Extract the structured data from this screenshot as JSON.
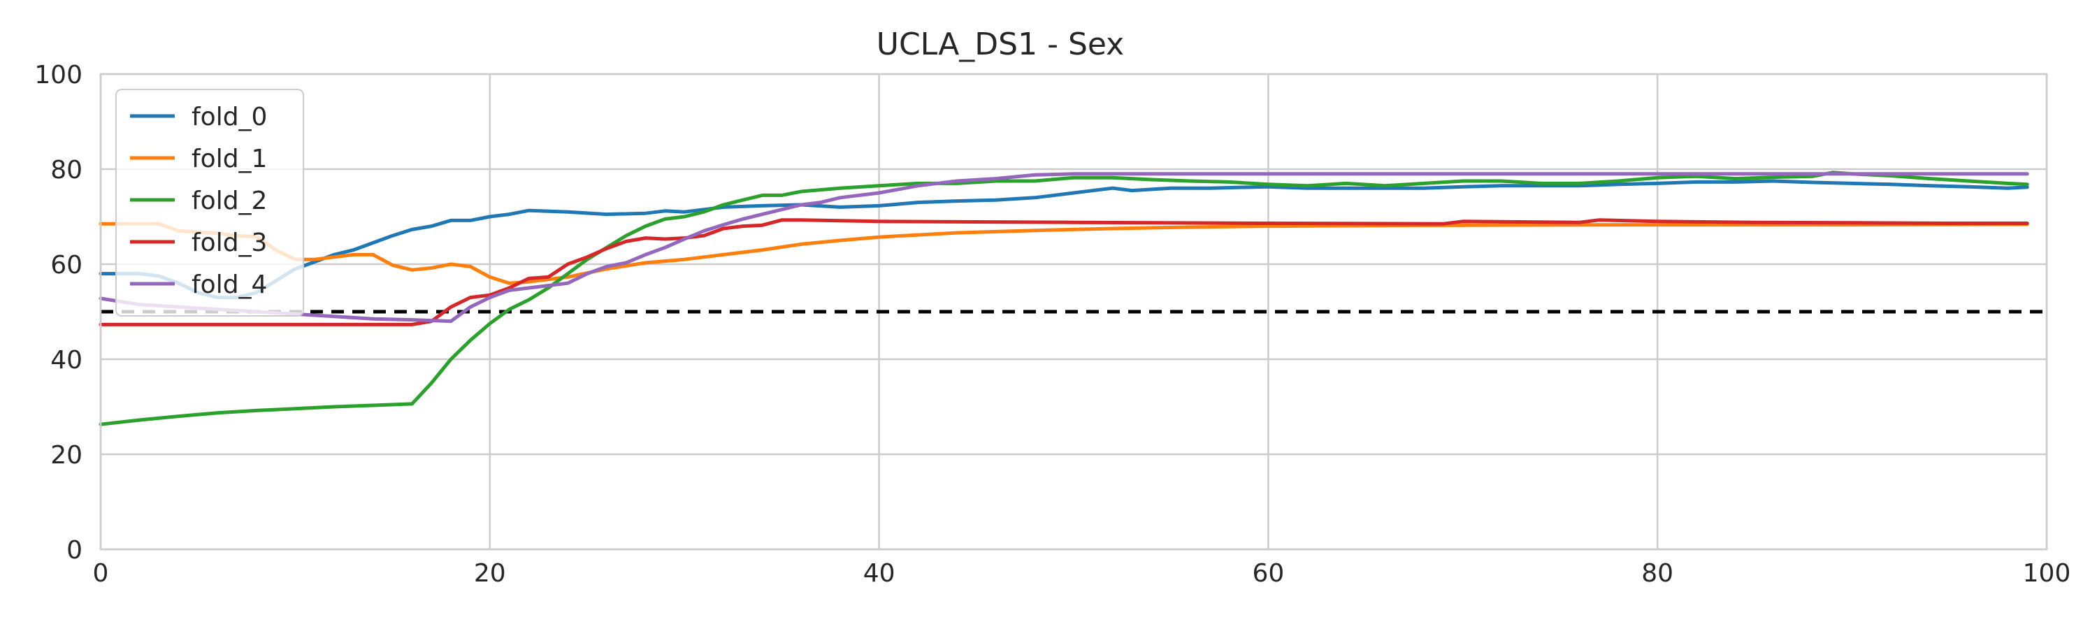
{
  "chart_data": {
    "type": "line",
    "title": "UCLA_DS1 - Sex",
    "xlabel": "",
    "ylabel": "",
    "xlim": [
      0,
      100
    ],
    "ylim": [
      0,
      100
    ],
    "x_ticks": [
      "0",
      "20",
      "40",
      "60",
      "80",
      "100"
    ],
    "y_ticks": [
      "0",
      "20",
      "40",
      "60",
      "80",
      "100"
    ],
    "grid": true,
    "legend_position": "upper-left",
    "reference_line": {
      "y": 50,
      "style": "dashed",
      "color": "#000000"
    },
    "series": [
      {
        "name": "fold_0",
        "color": "#1f77b4",
        "points": [
          [
            0,
            58
          ],
          [
            2,
            58
          ],
          [
            3,
            57.5
          ],
          [
            4,
            56
          ],
          [
            5,
            54
          ],
          [
            6,
            53
          ],
          [
            7,
            53
          ],
          [
            8,
            54
          ],
          [
            9,
            56.5
          ],
          [
            10,
            59
          ],
          [
            11,
            60.5
          ],
          [
            12,
            62
          ],
          [
            13,
            63
          ],
          [
            14,
            64.5
          ],
          [
            15,
            66
          ],
          [
            16,
            67.3
          ],
          [
            17,
            68
          ],
          [
            18,
            69.2
          ],
          [
            19,
            69.2
          ],
          [
            20,
            70
          ],
          [
            21,
            70.5
          ],
          [
            22,
            71.3
          ],
          [
            24,
            71
          ],
          [
            26,
            70.5
          ],
          [
            28,
            70.7
          ],
          [
            29,
            71.2
          ],
          [
            30,
            71
          ],
          [
            32,
            72
          ],
          [
            34,
            72.3
          ],
          [
            36,
            72.5
          ],
          [
            38,
            72
          ],
          [
            40,
            72.3
          ],
          [
            42,
            73
          ],
          [
            44,
            73.3
          ],
          [
            46,
            73.5
          ],
          [
            48,
            74
          ],
          [
            50,
            75
          ],
          [
            52,
            76
          ],
          [
            53,
            75.5
          ],
          [
            55,
            76
          ],
          [
            57,
            76
          ],
          [
            60,
            76.3
          ],
          [
            62,
            76
          ],
          [
            64,
            76
          ],
          [
            66,
            76
          ],
          [
            68,
            76
          ],
          [
            70,
            76.3
          ],
          [
            72,
            76.5
          ],
          [
            74,
            76.5
          ],
          [
            76,
            76.5
          ],
          [
            78,
            76.8
          ],
          [
            80,
            77
          ],
          [
            82,
            77.3
          ],
          [
            84,
            77.3
          ],
          [
            86,
            77.5
          ],
          [
            88,
            77.2
          ],
          [
            90,
            77
          ],
          [
            92,
            76.8
          ],
          [
            94,
            76.5
          ],
          [
            96,
            76.3
          ],
          [
            98,
            76
          ],
          [
            99,
            76.2
          ]
        ]
      },
      {
        "name": "fold_1",
        "color": "#ff7f0e",
        "points": [
          [
            0,
            68.5
          ],
          [
            3,
            68.5
          ],
          [
            4,
            67
          ],
          [
            6,
            66.5
          ],
          [
            7,
            66
          ],
          [
            8,
            65.8
          ],
          [
            9,
            63
          ],
          [
            10,
            61
          ],
          [
            11,
            61
          ],
          [
            13,
            62
          ],
          [
            14,
            62
          ],
          [
            15,
            59.8
          ],
          [
            16,
            58.8
          ],
          [
            17,
            59.2
          ],
          [
            18,
            60
          ],
          [
            19,
            59.5
          ],
          [
            20,
            57.3
          ],
          [
            21,
            56
          ],
          [
            22,
            56.3
          ],
          [
            24,
            57.3
          ],
          [
            26,
            59
          ],
          [
            28,
            60.3
          ],
          [
            30,
            61
          ],
          [
            32,
            62
          ],
          [
            34,
            63
          ],
          [
            36,
            64.2
          ],
          [
            38,
            65
          ],
          [
            40,
            65.7
          ],
          [
            44,
            66.6
          ],
          [
            48,
            67.1
          ],
          [
            52,
            67.5
          ],
          [
            56,
            67.8
          ],
          [
            60,
            68
          ],
          [
            65,
            68.1
          ],
          [
            70,
            68.2
          ],
          [
            80,
            68.3
          ],
          [
            90,
            68.3
          ],
          [
            99,
            68.4
          ]
        ]
      },
      {
        "name": "fold_2",
        "color": "#2ca02c",
        "points": [
          [
            0,
            26.3
          ],
          [
            2,
            27.2
          ],
          [
            4,
            28
          ],
          [
            6,
            28.7
          ],
          [
            8,
            29.2
          ],
          [
            10,
            29.6
          ],
          [
            12,
            30
          ],
          [
            14,
            30.3
          ],
          [
            16,
            30.6
          ],
          [
            17,
            35
          ],
          [
            18,
            40
          ],
          [
            19,
            44
          ],
          [
            20,
            47.5
          ],
          [
            21,
            50.5
          ],
          [
            22,
            52.5
          ],
          [
            23,
            55
          ],
          [
            24,
            58
          ],
          [
            25,
            61
          ],
          [
            26,
            63.5
          ],
          [
            27,
            66
          ],
          [
            28,
            68
          ],
          [
            29,
            69.5
          ],
          [
            30,
            70
          ],
          [
            31,
            71
          ],
          [
            32,
            72.5
          ],
          [
            33,
            73.5
          ],
          [
            34,
            74.5
          ],
          [
            35,
            74.5
          ],
          [
            36,
            75.3
          ],
          [
            38,
            76
          ],
          [
            40,
            76.5
          ],
          [
            42,
            77
          ],
          [
            44,
            77
          ],
          [
            46,
            77.5
          ],
          [
            48,
            77.5
          ],
          [
            50,
            78.2
          ],
          [
            52,
            78.2
          ],
          [
            54,
            77.8
          ],
          [
            56,
            77.5
          ],
          [
            58,
            77.3
          ],
          [
            60,
            76.8
          ],
          [
            62,
            76.5
          ],
          [
            64,
            77
          ],
          [
            66,
            76.5
          ],
          [
            68,
            77
          ],
          [
            70,
            77.5
          ],
          [
            72,
            77.5
          ],
          [
            74,
            77
          ],
          [
            76,
            77
          ],
          [
            78,
            77.5
          ],
          [
            80,
            78.2
          ],
          [
            82,
            78.5
          ],
          [
            84,
            78
          ],
          [
            86,
            78.3
          ],
          [
            88,
            78.5
          ],
          [
            89,
            79.3
          ],
          [
            90,
            79
          ],
          [
            92,
            78.6
          ],
          [
            94,
            78
          ],
          [
            96,
            77.5
          ],
          [
            98,
            77
          ],
          [
            99,
            76.8
          ]
        ]
      },
      {
        "name": "fold_3",
        "color": "#d62728",
        "points": [
          [
            0,
            47.3
          ],
          [
            6,
            47.3
          ],
          [
            10,
            47.3
          ],
          [
            16,
            47.3
          ],
          [
            17,
            48
          ],
          [
            18,
            51
          ],
          [
            19,
            53
          ],
          [
            20,
            53.5
          ],
          [
            21,
            55
          ],
          [
            22,
            57
          ],
          [
            23,
            57.3
          ],
          [
            24,
            60
          ],
          [
            25,
            61.5
          ],
          [
            26,
            63.3
          ],
          [
            27,
            64.8
          ],
          [
            28,
            65.5
          ],
          [
            29,
            65.3
          ],
          [
            30,
            65.5
          ],
          [
            31,
            66
          ],
          [
            32,
            67.5
          ],
          [
            33,
            68
          ],
          [
            34,
            68.2
          ],
          [
            35,
            69.3
          ],
          [
            36,
            69.3
          ],
          [
            40,
            69
          ],
          [
            50,
            68.8
          ],
          [
            60,
            68.6
          ],
          [
            69,
            68.5
          ],
          [
            70,
            69
          ],
          [
            76,
            68.8
          ],
          [
            77,
            69.3
          ],
          [
            80,
            69
          ],
          [
            85,
            68.8
          ],
          [
            90,
            68.7
          ],
          [
            95,
            68.6
          ],
          [
            99,
            68.6
          ]
        ]
      },
      {
        "name": "fold_4",
        "color": "#9467bd",
        "points": [
          [
            0,
            52.8
          ],
          [
            2,
            51.5
          ],
          [
            4,
            51
          ],
          [
            6,
            50.5
          ],
          [
            8,
            50
          ],
          [
            10,
            49.5
          ],
          [
            12,
            49
          ],
          [
            14,
            48.5
          ],
          [
            16,
            48.3
          ],
          [
            18,
            48
          ],
          [
            19,
            51
          ],
          [
            20,
            53
          ],
          [
            21,
            54.5
          ],
          [
            22,
            55
          ],
          [
            23,
            55.5
          ],
          [
            24,
            56
          ],
          [
            25,
            58
          ],
          [
            26,
            59.5
          ],
          [
            27,
            60.3
          ],
          [
            28,
            62
          ],
          [
            29,
            63.5
          ],
          [
            30,
            65.3
          ],
          [
            31,
            67
          ],
          [
            32,
            68.3
          ],
          [
            33,
            69.5
          ],
          [
            34,
            70.5
          ],
          [
            35,
            71.5
          ],
          [
            36,
            72.5
          ],
          [
            37,
            73
          ],
          [
            38,
            74
          ],
          [
            40,
            75
          ],
          [
            42,
            76.5
          ],
          [
            44,
            77.5
          ],
          [
            46,
            78
          ],
          [
            48,
            78.8
          ],
          [
            50,
            79
          ],
          [
            60,
            79
          ],
          [
            70,
            79
          ],
          [
            80,
            79
          ],
          [
            90,
            79
          ],
          [
            99,
            79
          ]
        ]
      }
    ]
  }
}
